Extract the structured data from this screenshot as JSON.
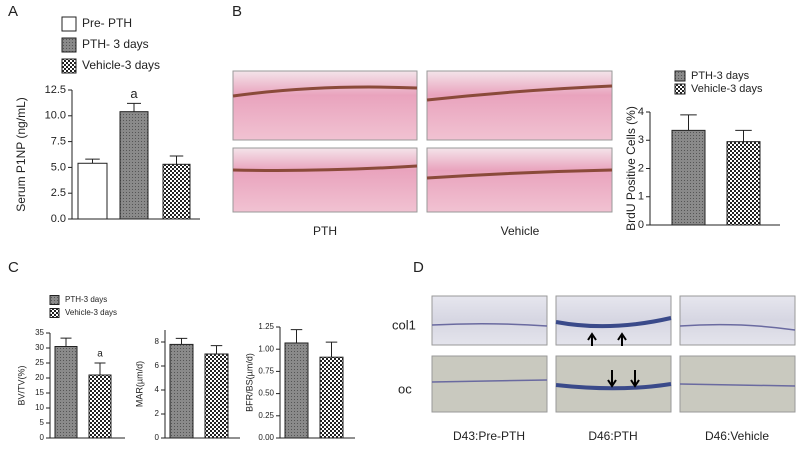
{
  "panel_labels": [
    "A",
    "B",
    "C",
    "D"
  ],
  "chart_data": [
    {
      "type": "bar",
      "ylabel": "Serum P1NP (ng/mL)",
      "ylim": [
        0,
        12.5
      ],
      "yticks": [
        {
          "value": 0,
          "label": "0.0"
        },
        {
          "value": 2.5,
          "label": "2.5"
        },
        {
          "value": 5,
          "label": "5.0"
        },
        {
          "value": 7.5,
          "label": "7.5"
        },
        {
          "value": 10,
          "label": "10.0"
        },
        {
          "value": 12.5,
          "label": "12.5"
        }
      ],
      "series": [
        {
          "name": "Pre- PTH",
          "pattern": "white",
          "values": [
            5.4
          ],
          "errors": [
            0.4
          ]
        },
        {
          "name": "PTH- 3 days",
          "pattern": "dots",
          "values": [
            10.4
          ],
          "errors": [
            0.8
          ]
        },
        {
          "name": "Vehicle-3 days",
          "pattern": "checker",
          "values": [
            5.3
          ],
          "errors": [
            0.8
          ]
        }
      ],
      "annotations": [
        {
          "text": "a",
          "series": 1
        }
      ]
    },
    {
      "type": "bar",
      "ylabel": "BrdU Positive Cells (%)",
      "ylim": [
        0,
        4
      ],
      "yticks": [
        0,
        1,
        2,
        3,
        4
      ],
      "series": [
        {
          "name": "PTH-3 days",
          "pattern": "dots",
          "values": [
            3.35
          ],
          "errors": [
            0.55
          ]
        },
        {
          "name": "Vehicle-3 days",
          "pattern": "checker",
          "values": [
            2.95
          ],
          "errors": [
            0.4
          ]
        }
      ]
    },
    {
      "type": "bar",
      "ylabel": "BV/TV(%)",
      "ylim": [
        0,
        35
      ],
      "yticks": [
        0,
        5,
        10,
        15,
        20,
        25,
        30,
        35
      ],
      "series": [
        {
          "name": "PTH-3 days",
          "pattern": "dots",
          "values": [
            30.5
          ],
          "errors": [
            2.8
          ]
        },
        {
          "name": "Vehicle-3 days",
          "pattern": "checker",
          "values": [
            21
          ],
          "errors": [
            4
          ]
        }
      ],
      "annotations": [
        {
          "text": "a",
          "series": 1
        }
      ]
    },
    {
      "type": "bar",
      "ylabel": "MAR(µm/d)",
      "ylim": [
        0,
        9
      ],
      "yticks": [
        0,
        2,
        4,
        6,
        8
      ],
      "series": [
        {
          "pattern": "dots",
          "values": [
            7.8
          ],
          "errors": [
            0.5
          ]
        },
        {
          "pattern": "checker",
          "values": [
            7.0
          ],
          "errors": [
            0.7
          ]
        }
      ]
    },
    {
      "type": "bar",
      "ylabel": "BFR/BS(µm/d)",
      "ylim": [
        0,
        1.25
      ],
      "yticks": [
        {
          "value": 0,
          "label": "0.00"
        },
        {
          "value": 0.25,
          "label": "0.25"
        },
        {
          "value": 0.5,
          "label": "0.50"
        },
        {
          "value": 0.75,
          "label": "0.75"
        },
        {
          "value": 1,
          "label": "1.00"
        },
        {
          "value": 1.25,
          "label": "1.25"
        }
      ],
      "series": [
        {
          "pattern": "dots",
          "values": [
            1.07
          ],
          "errors": [
            0.15
          ]
        },
        {
          "pattern": "checker",
          "values": [
            0.91
          ],
          "errors": [
            0.17
          ]
        }
      ]
    }
  ],
  "micrographs": {
    "B": {
      "columns": [
        "PTH",
        "Vehicle"
      ]
    },
    "D": {
      "rows": [
        "col1",
        "oc"
      ],
      "columns": [
        "D43:Pre-PTH",
        "D46:PTH",
        "D46:Vehicle"
      ]
    }
  }
}
